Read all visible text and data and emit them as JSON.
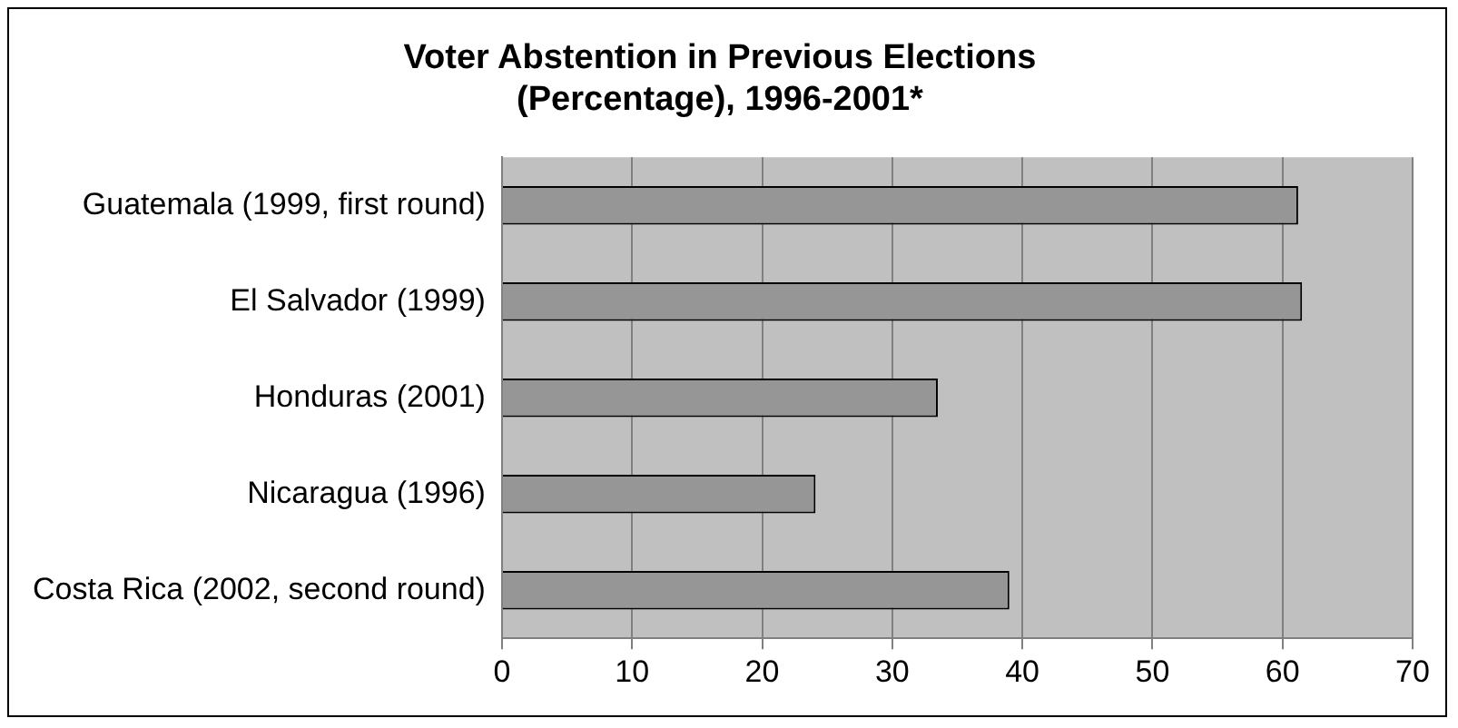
{
  "chart_data": {
    "type": "bar",
    "orientation": "horizontal",
    "title": [
      "Voter Abstention in Previous Elections",
      "(Percentage), 1996-2001*"
    ],
    "categories": [
      "Guatemala (1999, first round)",
      "El Salvador (1999)",
      "Honduras (2001)",
      "Nicaragua (1996)",
      "Costa Rica (2002, second round)"
    ],
    "values": [
      61.2,
      61.5,
      33.5,
      24.1,
      39.0
    ],
    "color": "#969696",
    "xlim": [
      0,
      70
    ],
    "xticks": [
      0,
      10,
      20,
      30,
      40,
      50,
      60,
      70
    ],
    "grid": "x"
  }
}
